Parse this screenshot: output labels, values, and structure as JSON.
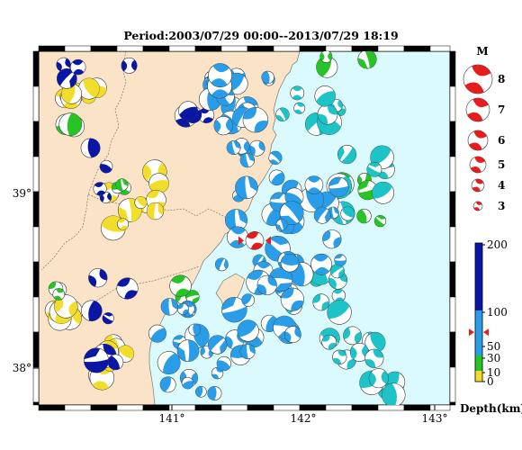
{
  "period_title": "Period:2003/07/29 00:00--2013/07/29 18:19",
  "axes": {
    "lon_ticks": [
      {
        "label": "141°",
        "value": 141
      },
      {
        "label": "142°",
        "value": 142
      },
      {
        "label": "143°",
        "value": 143
      }
    ],
    "lat_ticks": [
      {
        "label": "39°",
        "value": 39
      },
      {
        "label": "38°",
        "value": 38
      }
    ]
  },
  "magnitude_legend": {
    "header": "M",
    "items": [
      "8",
      "7",
      "6",
      "5",
      "4",
      "3"
    ]
  },
  "depth_scale": {
    "title": "Depth(km)",
    "labels": [
      "200",
      "100",
      "50",
      "30",
      "10",
      "0"
    ],
    "colors": {
      "shallow": "#f2de2a",
      "mid_shallow": "#27c426",
      "mid": "#2a9de8",
      "deep": "#0a17a6"
    },
    "mainshock_depth_km": 40
  },
  "colors": {
    "land": "#fbe3c8",
    "sea": "#dafafd",
    "mainshock": "#e81c1c",
    "frame_dark": "#000000",
    "coast": "#777777"
  },
  "events": {
    "mainshock": {
      "lon": 141.63,
      "lat": 38.73,
      "mag": 6.4,
      "color": "red"
    },
    "clusters": [
      {
        "name": "yellow-west",
        "color": "yellow",
        "count": 40
      },
      {
        "name": "inland-green",
        "color": "green",
        "count": 20
      },
      {
        "name": "inland-blue",
        "color": "blue",
        "count": 20
      },
      {
        "name": "offshore-cyan",
        "color": "cyan",
        "count": 45
      },
      {
        "name": "offshore-blue",
        "color": "lightblue",
        "count": 95
      }
    ]
  }
}
